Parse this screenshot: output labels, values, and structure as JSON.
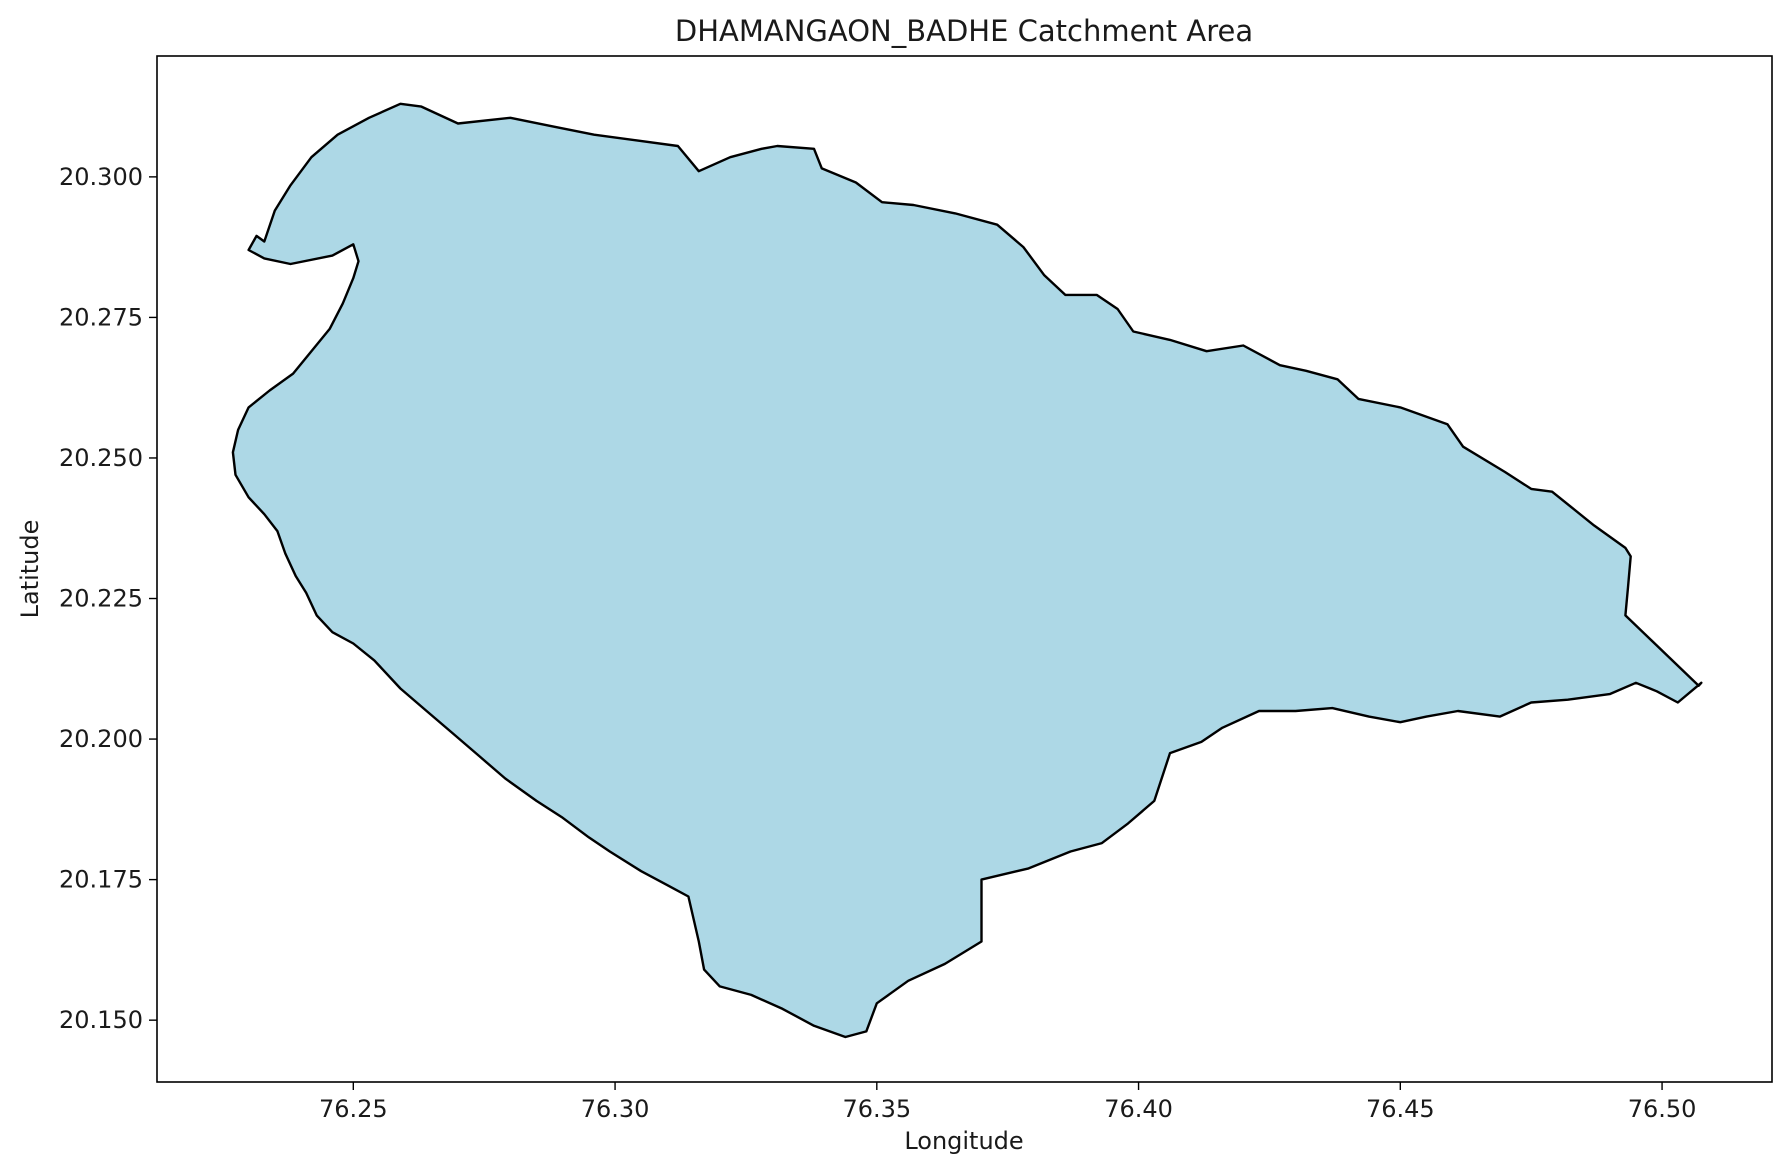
{
  "chart_data": {
    "type": "map",
    "title": "DHAMANGAON_BADHE Catchment Area",
    "xlabel": "Longitude",
    "ylabel": "Latitude",
    "xlim": [
      76.2125,
      76.521
    ],
    "ylim": [
      20.139,
      20.3215
    ],
    "xticks": [
      76.25,
      76.3,
      76.35,
      76.4,
      76.45,
      76.5
    ],
    "xtick_labels": [
      "76.25",
      "76.30",
      "76.35",
      "76.40",
      "76.45",
      "76.50"
    ],
    "yticks": [
      20.15,
      20.175,
      20.2,
      20.225,
      20.25,
      20.275,
      20.3
    ],
    "ytick_labels": [
      "20.150",
      "20.175",
      "20.200",
      "20.225",
      "20.250",
      "20.275",
      "20.300"
    ],
    "grid": false,
    "fill_color": "#add8e6",
    "edge_color": "#000000",
    "boundary": [
      [
        76.23,
        20.287
      ],
      [
        76.2315,
        20.2895
      ],
      [
        76.233,
        20.2885
      ],
      [
        76.235,
        20.294
      ],
      [
        76.238,
        20.2985
      ],
      [
        76.242,
        20.3035
      ],
      [
        76.247,
        20.3075
      ],
      [
        76.253,
        20.3105
      ],
      [
        76.259,
        20.313
      ],
      [
        76.263,
        20.3125
      ],
      [
        76.27,
        20.3095
      ],
      [
        76.28,
        20.3105
      ],
      [
        76.288,
        20.309
      ],
      [
        76.296,
        20.3075
      ],
      [
        76.304,
        20.3065
      ],
      [
        76.312,
        20.3055
      ],
      [
        76.316,
        20.301
      ],
      [
        76.322,
        20.3035
      ],
      [
        76.328,
        20.305
      ],
      [
        76.331,
        20.3055
      ],
      [
        76.338,
        20.305
      ],
      [
        76.3395,
        20.3015
      ],
      [
        76.346,
        20.299
      ],
      [
        76.351,
        20.2955
      ],
      [
        76.357,
        20.295
      ],
      [
        76.365,
        20.2935
      ],
      [
        76.373,
        20.2915
      ],
      [
        76.378,
        20.2875
      ],
      [
        76.382,
        20.2825
      ],
      [
        76.386,
        20.279
      ],
      [
        76.392,
        20.279
      ],
      [
        76.396,
        20.2765
      ],
      [
        76.399,
        20.2725
      ],
      [
        76.406,
        20.271
      ],
      [
        76.413,
        20.269
      ],
      [
        76.42,
        20.27
      ],
      [
        76.427,
        20.2665
      ],
      [
        76.432,
        20.2655
      ],
      [
        76.438,
        20.264
      ],
      [
        76.442,
        20.2605
      ],
      [
        76.45,
        20.259
      ],
      [
        76.459,
        20.256
      ],
      [
        76.462,
        20.252
      ],
      [
        76.47,
        20.2475
      ],
      [
        76.475,
        20.2445
      ],
      [
        76.479,
        20.244
      ],
      [
        76.483,
        20.241
      ],
      [
        76.487,
        20.238
      ],
      [
        76.493,
        20.234
      ],
      [
        76.494,
        20.2325
      ],
      [
        76.4935,
        20.227
      ],
      [
        76.493,
        20.222
      ],
      [
        76.507,
        20.2095
      ],
      [
        76.5075,
        20.21
      ],
      [
        76.503,
        20.2065
      ],
      [
        76.499,
        20.2085
      ],
      [
        76.495,
        20.21
      ],
      [
        76.49,
        20.208
      ],
      [
        76.482,
        20.207
      ],
      [
        76.475,
        20.2065
      ],
      [
        76.469,
        20.204
      ],
      [
        76.461,
        20.205
      ],
      [
        76.455,
        20.204
      ],
      [
        76.45,
        20.203
      ],
      [
        76.444,
        20.204
      ],
      [
        76.437,
        20.2055
      ],
      [
        76.43,
        20.205
      ],
      [
        76.423,
        20.205
      ],
      [
        76.416,
        20.202
      ],
      [
        76.412,
        20.1995
      ],
      [
        76.406,
        20.1975
      ],
      [
        76.403,
        20.189
      ],
      [
        76.398,
        20.185
      ],
      [
        76.393,
        20.1815
      ],
      [
        76.387,
        20.18
      ],
      [
        76.379,
        20.177
      ],
      [
        76.37,
        20.175
      ],
      [
        76.37,
        20.164
      ],
      [
        76.363,
        20.16
      ],
      [
        76.356,
        20.157
      ],
      [
        76.35,
        20.153
      ],
      [
        76.348,
        20.148
      ],
      [
        76.344,
        20.147
      ],
      [
        76.338,
        20.149
      ],
      [
        76.332,
        20.152
      ],
      [
        76.326,
        20.1545
      ],
      [
        76.32,
        20.156
      ],
      [
        76.317,
        20.159
      ],
      [
        76.316,
        20.164
      ],
      [
        76.315,
        20.168
      ],
      [
        76.314,
        20.172
      ],
      [
        76.31,
        20.174
      ],
      [
        76.305,
        20.1765
      ],
      [
        76.299,
        20.18
      ],
      [
        76.295,
        20.1825
      ],
      [
        76.29,
        20.186
      ],
      [
        76.285,
        20.189
      ],
      [
        76.279,
        20.193
      ],
      [
        76.274,
        20.197
      ],
      [
        76.269,
        20.201
      ],
      [
        76.264,
        20.205
      ],
      [
        76.259,
        20.209
      ],
      [
        76.254,
        20.214
      ],
      [
        76.25,
        20.217
      ],
      [
        76.246,
        20.219
      ],
      [
        76.243,
        20.222
      ],
      [
        76.241,
        20.226
      ],
      [
        76.239,
        20.229
      ],
      [
        76.237,
        20.233
      ],
      [
        76.2355,
        20.237
      ],
      [
        76.233,
        20.24
      ],
      [
        76.23,
        20.243
      ],
      [
        76.2275,
        20.247
      ],
      [
        76.227,
        20.251
      ],
      [
        76.228,
        20.255
      ],
      [
        76.23,
        20.259
      ],
      [
        76.234,
        20.262
      ],
      [
        76.2385,
        20.265
      ],
      [
        76.242,
        20.269
      ],
      [
        76.2455,
        20.273
      ],
      [
        76.248,
        20.2775
      ],
      [
        76.25,
        20.282
      ],
      [
        76.251,
        20.285
      ],
      [
        76.25,
        20.288
      ],
      [
        76.246,
        20.286
      ],
      [
        76.238,
        20.2845
      ],
      [
        76.233,
        20.2855
      ],
      [
        76.23,
        20.287
      ]
    ]
  }
}
